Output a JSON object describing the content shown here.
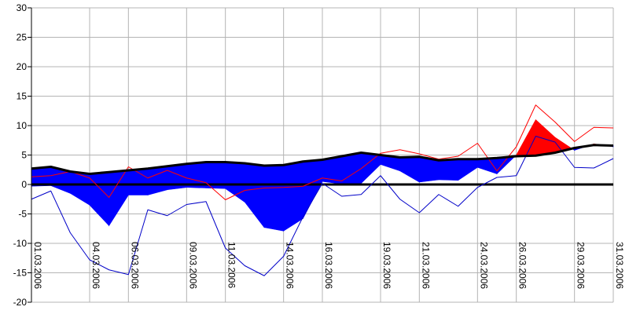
{
  "chart_data": {
    "type": "area",
    "title": "",
    "xlabel": "",
    "ylabel": "",
    "ylim": [
      -20,
      30
    ],
    "yticks": [
      30,
      25,
      20,
      15,
      10,
      5,
      0,
      -5,
      -10,
      -15,
      -20
    ],
    "xlim": [
      "01.03.2006",
      "31.03.2006"
    ],
    "xticks": [
      "01.03.2006",
      "04.03.2006",
      "06.03.2006",
      "09.03.2006",
      "11.03.2006",
      "14.03.2006",
      "16.03.2006",
      "19.03.2006",
      "21.03.2006",
      "24.03.2006",
      "26.03.2006",
      "29.03.2006",
      "31.03.2006"
    ],
    "grid": true,
    "legend": "none",
    "colors": {
      "above_fill": "#ff0000",
      "below_fill": "#0000ff",
      "reference_line": "#000000",
      "max_line": "#ff0000",
      "min_line": "#0000c8",
      "grid": "#b4b4b4",
      "background": "#ffffff"
    },
    "x": [
      "01.03.2006",
      "02.03.2006",
      "03.03.2006",
      "04.03.2006",
      "05.03.2006",
      "06.03.2006",
      "07.03.2006",
      "08.03.2006",
      "09.03.2006",
      "10.03.2006",
      "11.03.2006",
      "12.03.2006",
      "13.03.2006",
      "14.03.2006",
      "15.03.2006",
      "16.03.2006",
      "17.03.2006",
      "18.03.2006",
      "19.03.2006",
      "20.03.2006",
      "21.03.2006",
      "22.03.2006",
      "23.03.2006",
      "24.03.2006",
      "25.03.2006",
      "26.03.2006",
      "27.03.2006",
      "28.03.2006",
      "29.03.2006",
      "30.03.2006",
      "31.03.2006"
    ],
    "series": [
      {
        "role": "mean",
        "values": [
          -0.3,
          -0.2,
          -1.5,
          -3.5,
          -7.0,
          -1.8,
          -1.8,
          -0.9,
          -0.5,
          -0.6,
          -0.7,
          -3.0,
          -7.3,
          -7.9,
          -5.8,
          0.5,
          0.1,
          0.2,
          3.4,
          2.3,
          0.4,
          0.8,
          0.7,
          2.9,
          1.8,
          5.0,
          11.0,
          8.0,
          5.8,
          6.9,
          6.4
        ]
      },
      {
        "role": "reference",
        "values": [
          2.7,
          3.0,
          2.2,
          1.8,
          2.1,
          2.4,
          2.7,
          3.1,
          3.5,
          3.8,
          3.8,
          3.6,
          3.2,
          3.3,
          3.9,
          4.2,
          4.8,
          5.4,
          5.0,
          4.6,
          4.7,
          4.1,
          4.3,
          4.3,
          4.5,
          4.8,
          4.9,
          5.4,
          6.2,
          6.7,
          6.6
        ]
      },
      {
        "role": "max",
        "values": [
          1.3,
          1.5,
          2.2,
          1.1,
          -2.2,
          3.0,
          1.1,
          2.4,
          1.1,
          0.3,
          -2.6,
          -1.0,
          -0.6,
          -0.5,
          -0.3,
          1.1,
          0.6,
          2.7,
          5.3,
          5.9,
          5.2,
          4.3,
          4.8,
          7.0,
          2.3,
          6.4,
          13.5,
          10.6,
          7.3,
          9.7,
          9.6
        ]
      },
      {
        "role": "min",
        "values": [
          -2.5,
          -1.1,
          -8.2,
          -12.8,
          -14.5,
          -15.3,
          -4.3,
          -5.3,
          -3.4,
          -2.9,
          -10.8,
          -13.8,
          -15.5,
          -12.2,
          -5.5,
          0.2,
          -2.0,
          -1.7,
          1.5,
          -2.5,
          -4.8,
          -1.7,
          -3.7,
          -0.5,
          1.2,
          1.5,
          8.2,
          7.2,
          2.9,
          2.8,
          4.4
        ]
      }
    ]
  }
}
